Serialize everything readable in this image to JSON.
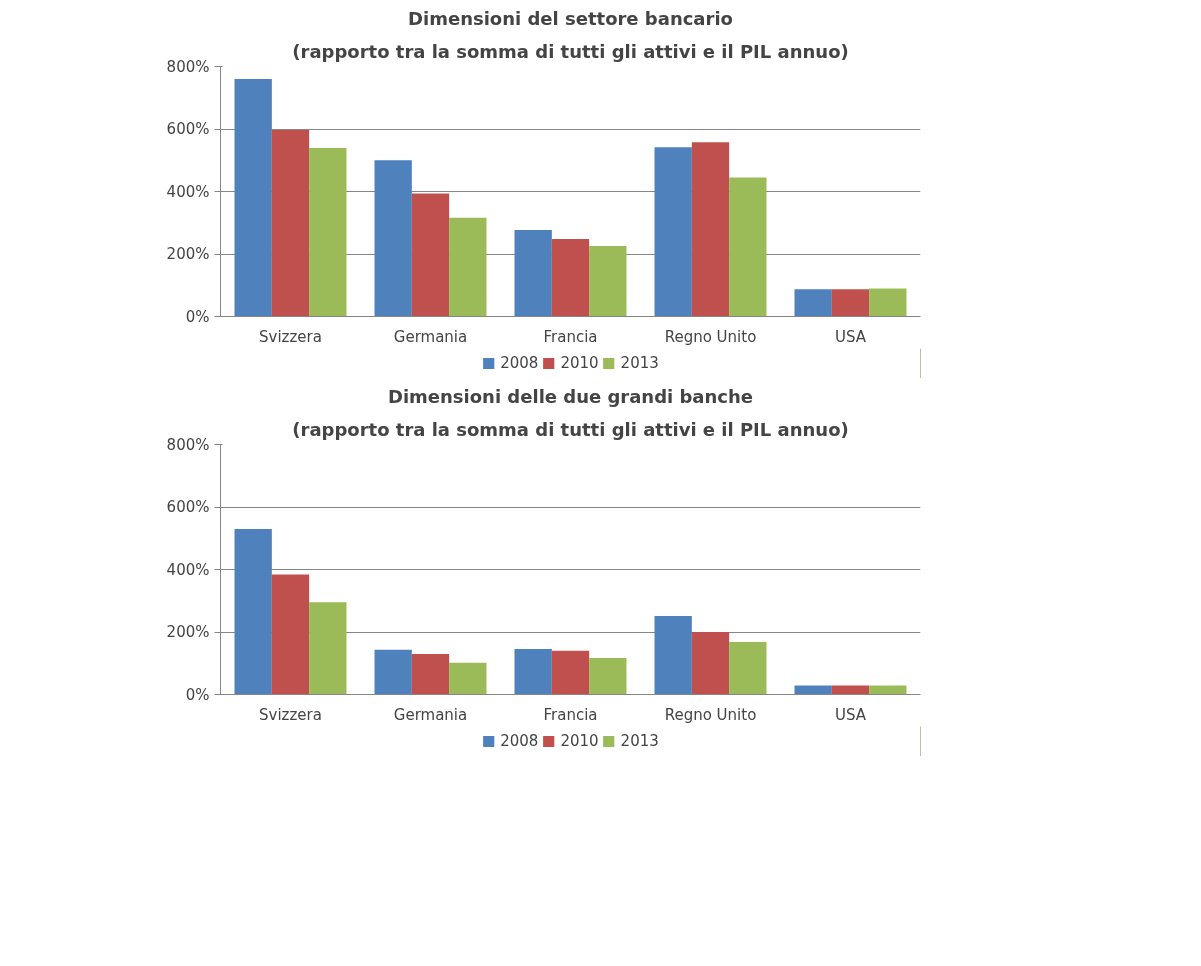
{
  "chart_data": [
    {
      "type": "bar",
      "title": "Dimensioni del settore bancario",
      "subtitle": "(rapporto tra la somma di tutti gli attivi e il PIL annuo)",
      "categories": [
        "Svizzera",
        "Germania",
        "Francia",
        "Regno Unito",
        "USA"
      ],
      "series": [
        {
          "name": "2008",
          "color": "#4f81bd",
          "values": [
            760,
            500,
            277,
            542,
            87
          ]
        },
        {
          "name": "2010",
          "color": "#c0504d",
          "values": [
            597,
            394,
            248,
            558,
            87
          ]
        },
        {
          "name": "2013",
          "color": "#9bbb59",
          "values": [
            539,
            316,
            226,
            445,
            90
          ]
        }
      ],
      "ylim": [
        0,
        800
      ],
      "yticks": [
        {
          "value": 0,
          "label": "0%"
        },
        {
          "value": 200,
          "label": "200%"
        },
        {
          "value": 400,
          "label": "400%"
        },
        {
          "value": 600,
          "label": "600%"
        },
        {
          "value": 800,
          "label": "800%"
        }
      ],
      "grid": "y",
      "legend": "bottom"
    },
    {
      "type": "bar",
      "title": "Dimensioni delle due grandi banche",
      "subtitle": "(rapporto tra la somma di tutti gli attivi e il PIL annuo)",
      "categories": [
        "Svizzera",
        "Germania",
        "Francia",
        "Regno Unito",
        "USA"
      ],
      "series": [
        {
          "name": "2008",
          "color": "#4f81bd",
          "values": [
            530,
            143,
            146,
            251,
            29
          ]
        },
        {
          "name": "2010",
          "color": "#c0504d",
          "values": [
            384,
            130,
            140,
            200,
            29
          ]
        },
        {
          "name": "2013",
          "color": "#9bbb59",
          "values": [
            295,
            102,
            117,
            168,
            29
          ]
        }
      ],
      "ylim": [
        0,
        800
      ],
      "yticks": [
        {
          "value": 0,
          "label": "0%"
        },
        {
          "value": 200,
          "label": "200%"
        },
        {
          "value": 400,
          "label": "400%"
        },
        {
          "value": 600,
          "label": "600%"
        },
        {
          "value": 800,
          "label": "800%"
        }
      ],
      "grid": "y",
      "legend": "bottom"
    }
  ]
}
